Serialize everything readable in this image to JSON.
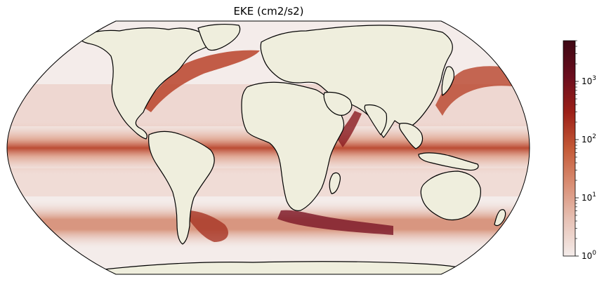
{
  "title": "EKE (cm2/s2)",
  "map": {
    "projection": "Robinson (global)",
    "land_color": "#efeedd",
    "coastline_color": "#000000",
    "ocean_colormap": [
      "#f4ecea",
      "#e7c2b6",
      "#d98e74",
      "#c45a37",
      "#9c2018",
      "#6b0e1e",
      "#3e0814"
    ]
  },
  "colorbar": {
    "scale": "log",
    "range": [
      1,
      5000
    ],
    "ticks": [
      {
        "base": "10",
        "exp": "0",
        "value": 1
      },
      {
        "base": "10",
        "exp": "1",
        "value": 10
      },
      {
        "base": "10",
        "exp": "2",
        "value": 100
      },
      {
        "base": "10",
        "exp": "3",
        "value": 1000
      }
    ]
  }
}
